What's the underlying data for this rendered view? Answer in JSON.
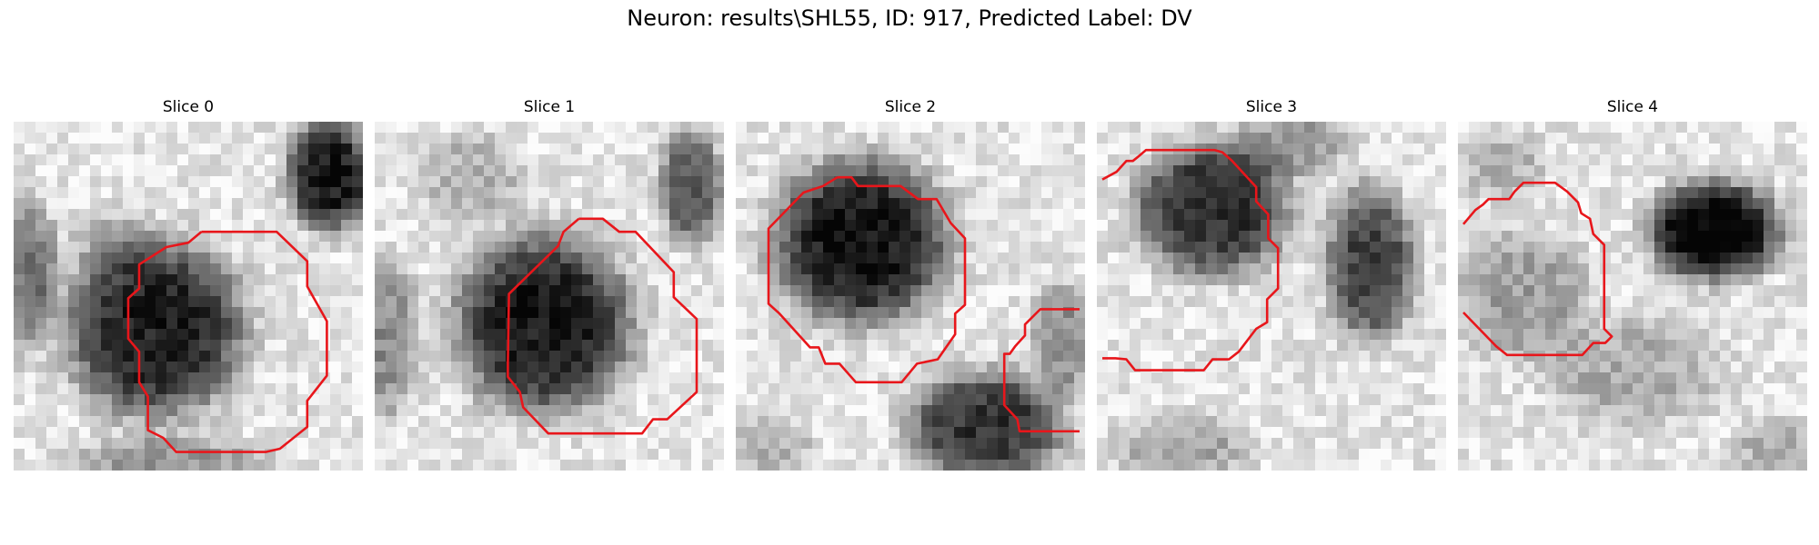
{
  "figure": {
    "title": "Neuron: results\\SHL55, ID: 917, Predicted Label: DV"
  },
  "panels": [
    {
      "title": "Slice 0",
      "description": "grayscale micrograph patch with red contour"
    },
    {
      "title": "Slice 1",
      "description": "grayscale micrograph patch with red contour"
    },
    {
      "title": "Slice 2",
      "description": "grayscale micrograph patch with red contour"
    },
    {
      "title": "Slice 3",
      "description": "grayscale micrograph patch with red contour"
    },
    {
      "title": "Slice 4",
      "description": "grayscale micrograph patch with red contour"
    }
  ],
  "colors": {
    "background": "#ffffff",
    "contour": "#e8161b"
  }
}
